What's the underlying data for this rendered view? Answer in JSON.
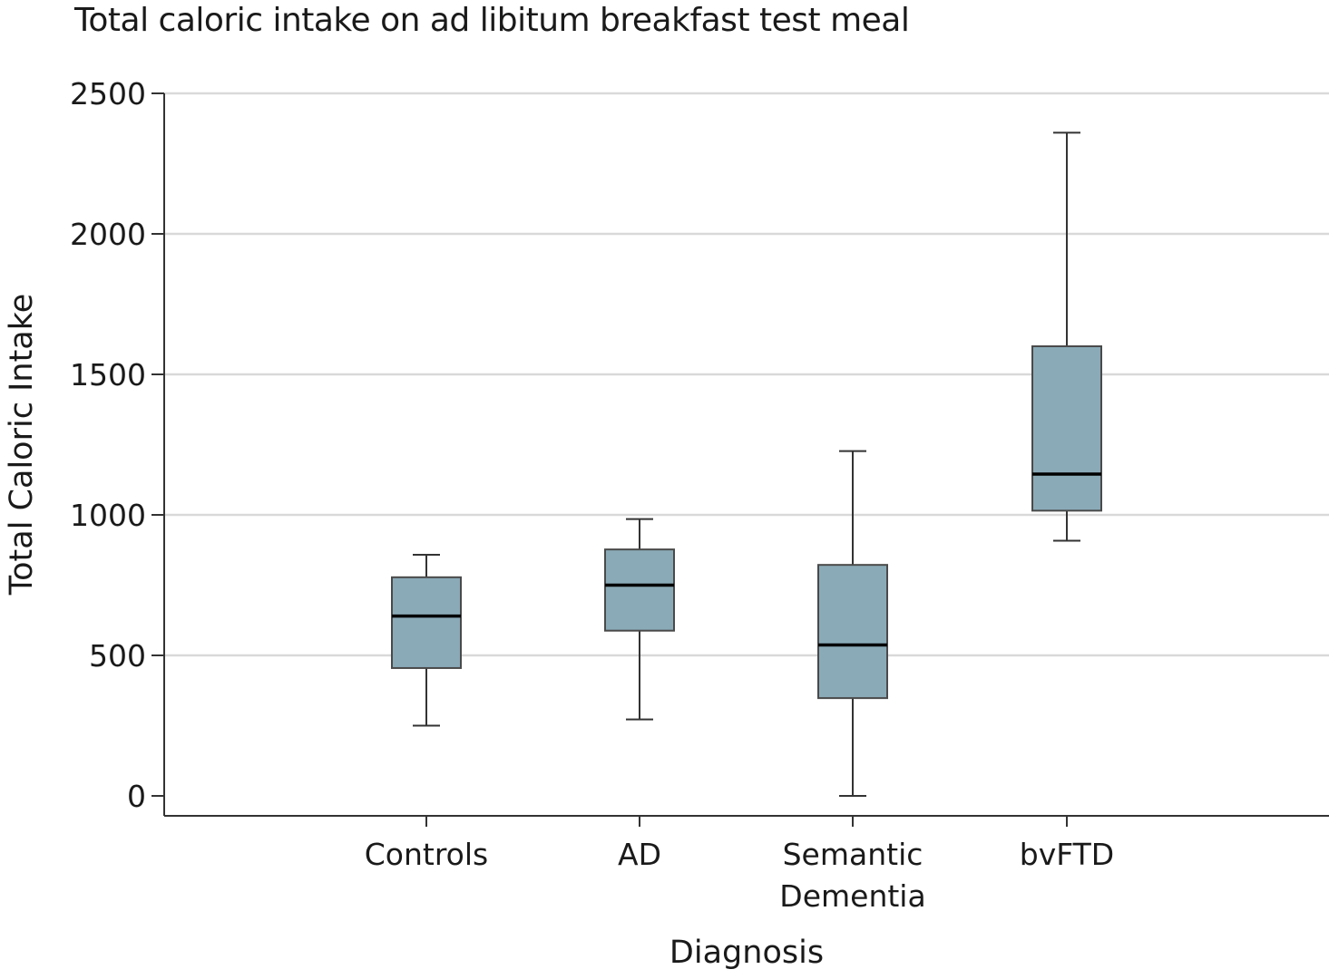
{
  "chart_data": {
    "type": "box",
    "title": "Total caloric intake on ad libitum breakfast test meal",
    "xlabel": "Diagnosis",
    "ylabel": "Total Caloric Intake",
    "ylim": [
      0,
      2500
    ],
    "yticks": [
      0,
      500,
      1000,
      1500,
      2000,
      2500
    ],
    "grid": true,
    "box_color": "#8aaab8",
    "categories": [
      {
        "label": [
          "Controls"
        ],
        "min": 250,
        "q1": 455,
        "median": 640,
        "q3": 778,
        "max": 858
      },
      {
        "label": [
          "AD"
        ],
        "min": 272,
        "q1": 588,
        "median": 750,
        "q3": 877,
        "max": 985
      },
      {
        "label": [
          "Semantic",
          "Dementia"
        ],
        "min": 0,
        "q1": 348,
        "median": 537,
        "q3": 822,
        "max": 1227
      },
      {
        "label": [
          "bvFTD"
        ],
        "min": 908,
        "q1": 1015,
        "median": 1145,
        "q3": 1600,
        "max": 2360
      }
    ]
  }
}
